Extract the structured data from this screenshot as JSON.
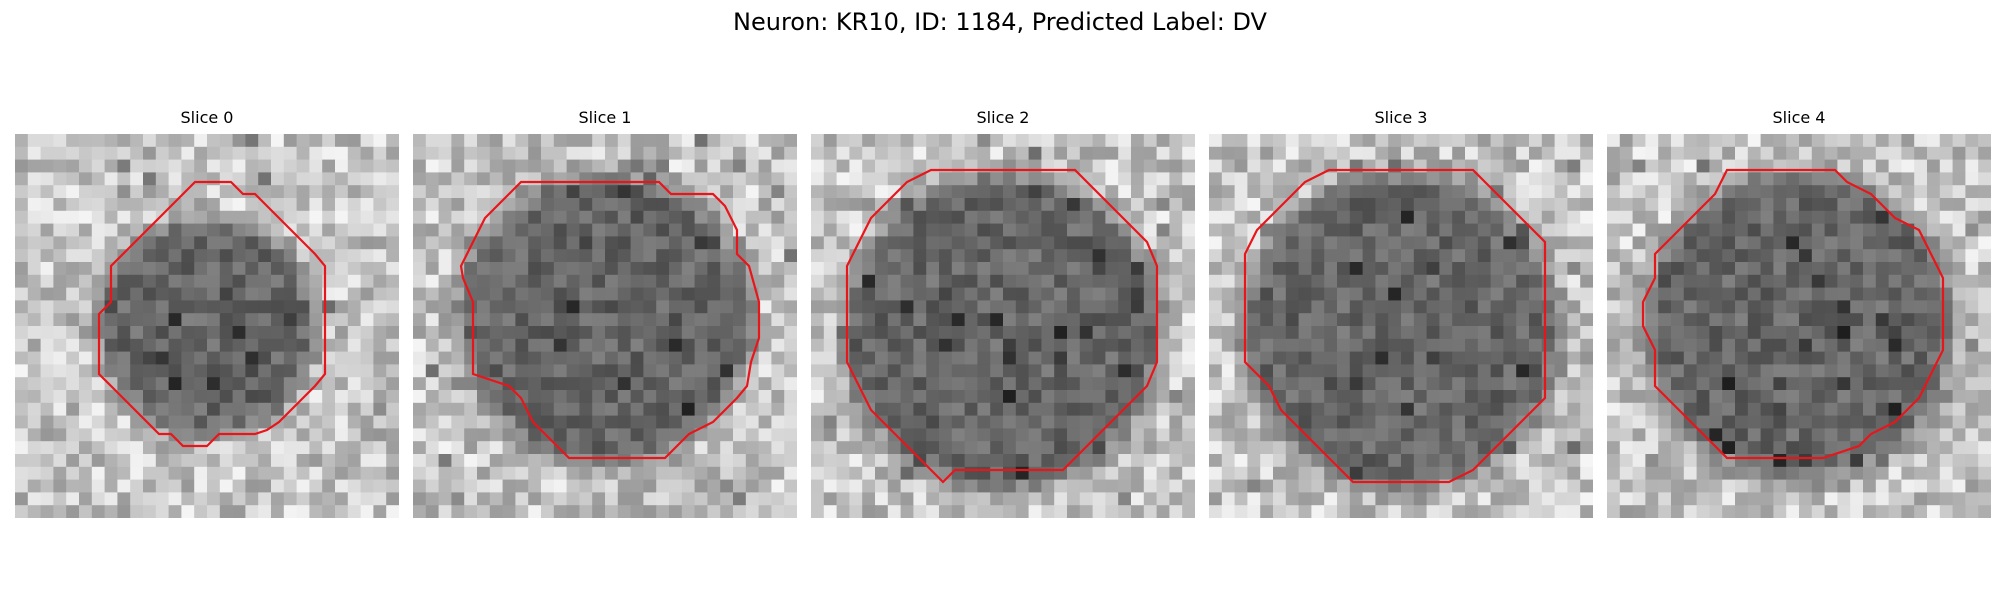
{
  "figure": {
    "title": "Neuron: KR10, ID: 1184, Predicted Label: DV"
  },
  "panels": [
    {
      "title": "Slice 0"
    },
    {
      "title": "Slice 1"
    },
    {
      "title": "Slice 2"
    },
    {
      "title": "Slice 3"
    },
    {
      "title": "Slice 4"
    }
  ],
  "colors": {
    "contour": "#e8161b",
    "background": "#ffffff"
  }
}
